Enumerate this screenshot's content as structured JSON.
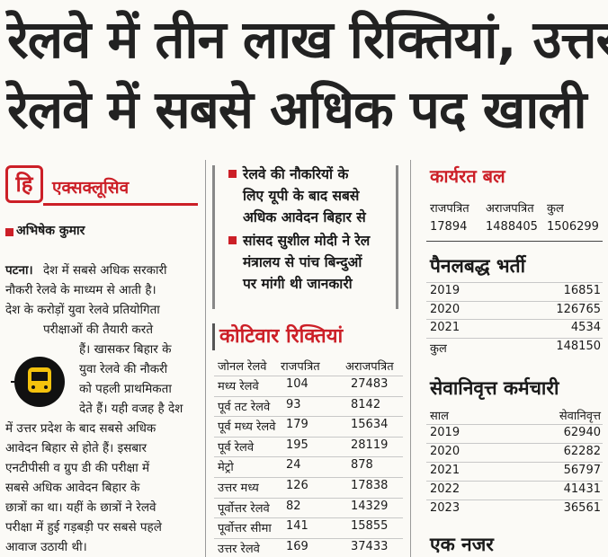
{
  "headline": [
    "रेलवे में तीन लाख रिक्तियां, उत्तर",
    "रेलवे में सबसे अधिक पद खाली"
  ],
  "exclusive": {
    "logo": "हि",
    "label": "एक्सक्लूसिव"
  },
  "byline": "अभिषेक कुमार",
  "article": {
    "dateline": "पटना।",
    "lines": [
      "देश में सबसे अधिक सरकारी",
      "नौकरी रेलवे के माध्यम से आती है।",
      "देश के करोड़ों युवा रेलवे प्रतियोगिता",
      "परीक्षाओं की तैयारी करते",
      "हैं। खासकर बिहार के",
      "युवा रेलवे की नौकरी",
      "को पहली प्राथमिकता",
      "देते हैं। यही वजह है देश",
      "में उत्तर प्रदेश के बाद सबसे अधिक",
      "आवेदन बिहार से होते हैं। इसबार",
      "एनटीपीसी व ग्रुप डी की परीक्षा में",
      "सबसे अधिक आवेदन बिहार के",
      "छात्रों का था। यहीं के छात्रों ने रेलवे",
      "परीक्षा में हुई गड़बड़ी पर सबसे पहले",
      "आवाज उठायी थी।"
    ]
  },
  "bullets": [
    [
      "रेलवे की नौकरियों के",
      "लिए यूपी के बाद सबसे",
      "अधिक आवेदन बिहार से"
    ],
    [
      "सांसद सुशील मोदी ने रेल",
      "मंत्रालय से पांच बिन्दुओं",
      "पर मांगी थी जानकारी"
    ]
  ],
  "zone_table": {
    "title": "कोटिवार रिक्तियां",
    "header": [
      "जोनल रेलवे",
      "राजपत्रित",
      "अराजपत्रित"
    ],
    "rows": [
      [
        "मध्य रेलवे",
        104,
        27483
      ],
      [
        "पूर्व तट रेलवे",
        93,
        8142
      ],
      [
        "पूर्व मध्य रेलवे",
        179,
        15634
      ],
      [
        "पूर्व रेलवे",
        195,
        28119
      ],
      [
        "मेट्रो",
        24,
        878
      ],
      [
        "उत्तर मध्य",
        126,
        17838
      ],
      [
        "पूर्वोत्तर रेलवे",
        82,
        14329
      ],
      [
        "पूर्वोत्तर सीमा",
        141,
        15855
      ],
      [
        "उत्तर रेलवे",
        169,
        37433
      ]
    ]
  },
  "workforce": {
    "title": "कार्यरत बल",
    "header": [
      "राजपत्रित",
      "अराजपत्रित",
      "कुल"
    ],
    "values": [
      17894,
      1488405,
      1506299
    ]
  },
  "panel": {
    "title": "पैनलबद्ध भर्ती",
    "rows": [
      [
        2019,
        16851
      ],
      [
        2020,
        126765
      ],
      [
        2021,
        4534
      ],
      [
        "कुल",
        148150
      ]
    ]
  },
  "retired": {
    "title": "सेवानिवृत्त कर्मचारी",
    "header": [
      "साल",
      "सेवानिवृत्त"
    ],
    "rows": [
      [
        2019,
        62940
      ],
      [
        2020,
        62282
      ],
      [
        2021,
        56797
      ],
      [
        2022,
        41431
      ],
      [
        2023,
        36561
      ]
    ]
  },
  "glance": "एक नजर"
}
